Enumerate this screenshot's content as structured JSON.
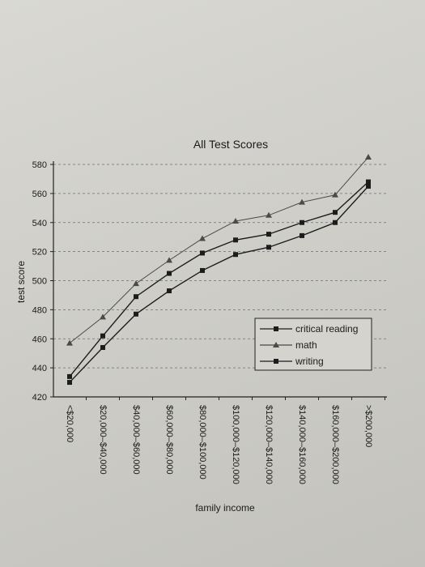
{
  "chart_data": {
    "type": "line",
    "title": "All Test Scores",
    "xlabel": "family income",
    "ylabel": "test score",
    "ylim": [
      420,
      580
    ],
    "yticks": [
      420,
      440,
      460,
      480,
      500,
      520,
      540,
      560,
      580
    ],
    "grid": true,
    "legend_placement": "right",
    "categories": [
      "<$20,000",
      "$20,000–$40,000",
      "$40,000–$60,000",
      "$60,000–$80,000",
      "$80,000–$100,000",
      "$100,000–$120,000",
      "$120,000–$140,000",
      "$140,000–$160,000",
      "$160,000–$200,000",
      ">$200,000"
    ],
    "series": [
      {
        "name": "critical reading",
        "marker": "square",
        "values": [
          434,
          462,
          489,
          505,
          519,
          528,
          532,
          540,
          547,
          568
        ]
      },
      {
        "name": "math",
        "marker": "triangle",
        "values": [
          457,
          475,
          498,
          514,
          529,
          541,
          545,
          554,
          559,
          585
        ]
      },
      {
        "name": "writing",
        "marker": "square",
        "values": [
          430,
          454,
          477,
          493,
          507,
          518,
          523,
          531,
          540,
          565
        ]
      }
    ]
  }
}
